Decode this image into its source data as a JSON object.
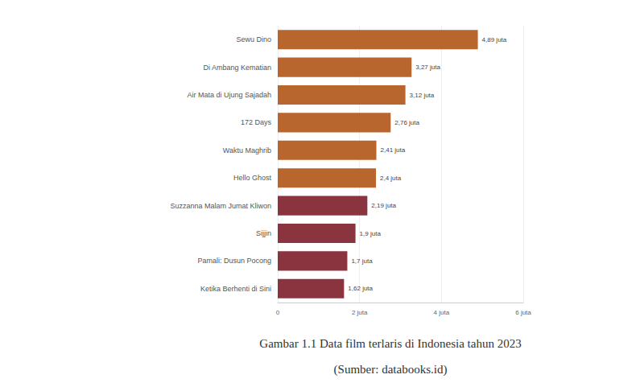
{
  "chart_data": {
    "type": "bar",
    "orientation": "horizontal",
    "title": "Gambar 1.1 Data film terlaris di Indonesia tahun 2023",
    "subtitle": "(Sumber: databooks.id)",
    "categories": [
      "Sewu Dino",
      "Di Ambang Kematian",
      "Air Mata di Ujung Sajadah",
      "172 Days",
      "Waktu Maghrib",
      "Hello Ghost",
      "Suzzanna Malam Jumat Kliwon",
      "Sijjin",
      "Pamali: Dusun Pocong",
      "Ketika Berhenti di Sini"
    ],
    "values": [
      4.89,
      3.27,
      3.12,
      2.76,
      2.41,
      2.4,
      2.19,
      1.9,
      1.7,
      1.62
    ],
    "value_labels": [
      "4,89 juta",
      "3,27 juta",
      "3,12 juta",
      "2,76 juta",
      "2,41 juta",
      "2,4 juta",
      "2,19 juta",
      "1,9 juta",
      "1,7 juta",
      "1,62 juta"
    ],
    "colors": [
      "#b8652e",
      "#b8652e",
      "#b8652e",
      "#b8652e",
      "#b8652e",
      "#b8652e",
      "#8a3440",
      "#8a3440",
      "#8a3440",
      "#8a3440"
    ],
    "xlim": [
      0,
      6
    ],
    "xticks": [
      0,
      {
        "value": 2,
        "label": "2 juta"
      },
      {
        "value": 4,
        "label": "4 juta"
      },
      {
        "value": 6,
        "label": "6 juta"
      }
    ],
    "grid": true,
    "data_labels": true
  }
}
